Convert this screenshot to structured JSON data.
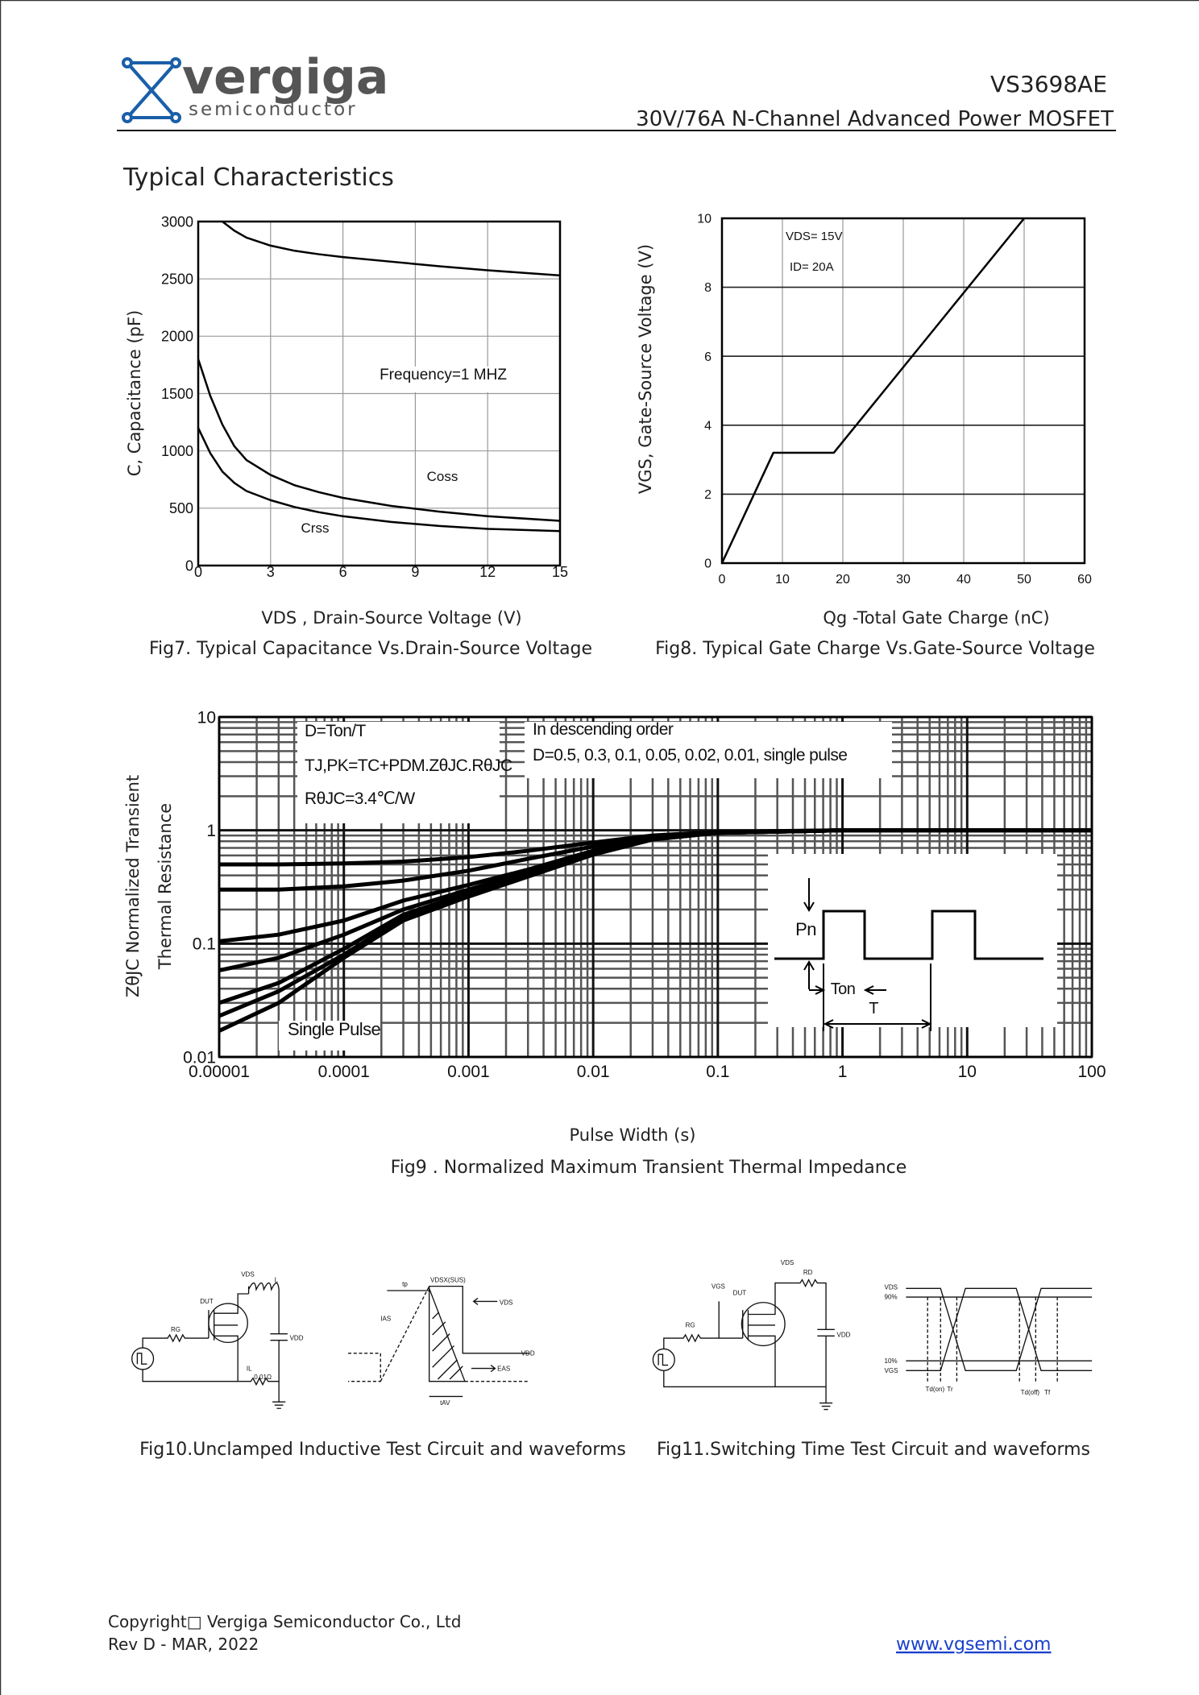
{
  "header": {
    "logo_name": "vergiga",
    "logo_sub": "semiconductor",
    "part": "VS3698AE",
    "subtitle": "30V/76A N-Channel Advanced Power MOSFET"
  },
  "section_title": "Typical Characteristics",
  "chart_data": [
    {
      "type": "line",
      "caption": "Fig7. Typical Capacitance Vs.Drain-Source Voltage",
      "xlabel": "VDS , Drain-Source Voltage (V)",
      "ylabel": "C, Capacitance (pF)",
      "xlim": [
        0,
        15
      ],
      "xticks": [
        0,
        3,
        6,
        9,
        12,
        15
      ],
      "ylim": [
        0,
        3000
      ],
      "yticks": [
        0,
        500,
        1000,
        1500,
        2000,
        2500,
        3000
      ],
      "grid": true,
      "x": [
        0,
        0.5,
        1,
        1.5,
        2,
        3,
        4,
        5,
        6,
        8,
        10,
        12,
        15
      ],
      "series": [
        {
          "color": "#000000",
          "values": [
            null,
            null,
            3000,
            2920,
            2860,
            2790,
            2745,
            2715,
            2690,
            2650,
            2610,
            2575,
            2530
          ]
        },
        {
          "color": "#000000",
          "values": [
            1800,
            1480,
            1230,
            1040,
            920,
            790,
            700,
            640,
            590,
            520,
            470,
            430,
            390
          ]
        },
        {
          "color": "#000000",
          "values": [
            1200,
            980,
            820,
            720,
            650,
            570,
            510,
            465,
            430,
            380,
            345,
            320,
            300
          ]
        }
      ],
      "annotations": [
        "Frequency=1 MHZ",
        "Coss",
        "Crss"
      ]
    },
    {
      "type": "line",
      "caption": "Fig8. Typical Gate Charge Vs.Gate-Source Voltage",
      "xlabel": "Qg -Total Gate Charge (nC)",
      "ylabel": "VGS, Gate-Source Voltage (V)",
      "xlim": [
        0,
        60
      ],
      "xticks": [
        0,
        10,
        20,
        30,
        40,
        50,
        60
      ],
      "ylim": [
        0,
        10
      ],
      "yticks": [
        0,
        2,
        4,
        6,
        8,
        10
      ],
      "grid": true,
      "x": [
        0,
        8.5,
        18.5,
        50
      ],
      "series": [
        {
          "color": "#000000",
          "values": [
            0,
            3.2,
            3.2,
            10
          ]
        }
      ],
      "annotations": [
        "VDS= 15V",
        "ID= 20A"
      ]
    },
    {
      "type": "line",
      "caption": "Fig9 . Normalized Maximum Transient Thermal Impedance",
      "xlabel": "Pulse Width (s)",
      "ylabel": [
        "ZθJC Normalized Transient",
        "Thermal Resistance"
      ],
      "xlog": true,
      "ylog": true,
      "xlim": [
        1e-05,
        100
      ],
      "xticks": [
        1e-05,
        0.0001,
        0.001,
        0.01,
        0.1,
        1,
        10,
        100
      ],
      "ylim": [
        0.01,
        10
      ],
      "yticks": [
        0.01,
        0.1,
        1,
        10
      ],
      "grid": true,
      "x": [
        1e-05,
        3e-05,
        0.0001,
        0.0003,
        0.001,
        0.003,
        0.01,
        0.03,
        0.1,
        1,
        10,
        100
      ],
      "series": [
        {
          "color": "#000000",
          "values": [
            0.5,
            0.5,
            0.51,
            0.53,
            0.58,
            0.66,
            0.78,
            0.9,
            0.97,
            1,
            1,
            1
          ]
        },
        {
          "color": "#000000",
          "values": [
            0.3,
            0.3,
            0.32,
            0.36,
            0.44,
            0.56,
            0.72,
            0.87,
            0.96,
            1,
            1,
            1
          ]
        },
        {
          "color": "#000000",
          "values": [
            0.105,
            0.12,
            0.16,
            0.24,
            0.33,
            0.45,
            0.66,
            0.85,
            0.95,
            1,
            1,
            1
          ]
        },
        {
          "color": "#000000",
          "values": [
            0.058,
            0.075,
            0.12,
            0.2,
            0.3,
            0.43,
            0.64,
            0.84,
            0.95,
            1,
            1,
            1
          ]
        },
        {
          "color": "#000000",
          "values": [
            0.03,
            0.045,
            0.09,
            0.18,
            0.28,
            0.41,
            0.63,
            0.84,
            0.95,
            1,
            1,
            1
          ]
        },
        {
          "color": "#000000",
          "values": [
            0.023,
            0.038,
            0.08,
            0.17,
            0.27,
            0.4,
            0.62,
            0.83,
            0.95,
            1,
            1,
            1
          ]
        },
        {
          "color": "#000000",
          "values": [
            0.017,
            0.03,
            0.075,
            0.16,
            0.26,
            0.39,
            0.61,
            0.83,
            0.95,
            1,
            1,
            1
          ]
        }
      ],
      "annotations": [
        "D=Ton/T",
        "TJ,PK=TC+PDM.ZθJC.RθJC",
        "RθJC=3.4℃/W",
        "In descending order",
        "D=0.5, 0.3, 0.1, 0.05, 0.02, 0.01, single pulse",
        "Single Pulse",
        "Pn",
        "Ton",
        "T"
      ]
    }
  ],
  "diagrams": {
    "fig10": {
      "caption": "Fig10.Unclamped Inductive Test Circuit and waveforms",
      "labels": [
        "VDS",
        "L",
        "DUT",
        "RG",
        "VDD",
        "IL",
        "0.01Ω",
        "tp",
        "VDSX(SUS)",
        "VDS",
        "IAS",
        "VDD",
        "EAS",
        "tAV"
      ]
    },
    "fig11": {
      "caption": "Fig11.Switching Time Test Circuit and waveforms",
      "labels": [
        "VDS",
        "RD",
        "DUT",
        "VGS",
        "RG",
        "VDD",
        "VDS",
        "90%",
        "10%",
        "VGS",
        "Td(on)",
        "Tr",
        "Td(off)",
        "Tf"
      ]
    }
  },
  "footer": {
    "copyright": "Copyright□ Vergiga Semiconductor Co., Ltd",
    "revision": "Rev D - MAR, 2022",
    "website": "www.vgsemi.com "
  }
}
